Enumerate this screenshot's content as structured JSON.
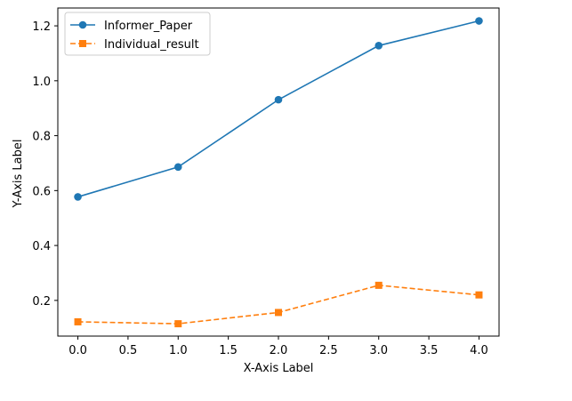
{
  "chart_data": {
    "type": "line",
    "title": "",
    "xlabel": "X-Axis Label",
    "ylabel": "Y-Axis Label",
    "x": [
      0.0,
      1.0,
      2.0,
      3.0,
      4.0
    ],
    "xlim": [
      -0.2,
      4.2
    ],
    "ylim": [
      0.07,
      1.265
    ],
    "xticks": [
      "0.0",
      "0.5",
      "1.0",
      "1.5",
      "2.0",
      "2.5",
      "3.0",
      "3.5",
      "4.0"
    ],
    "yticks": [
      "0.2",
      "0.4",
      "0.6",
      "0.8",
      "1.0",
      "1.2"
    ],
    "grid": false,
    "legend_position": "top-left",
    "series": [
      {
        "name": "Informer_Paper",
        "values": [
          0.577,
          0.686,
          0.931,
          1.128,
          1.218
        ],
        "color": "#1f77b4",
        "line_style": "solid",
        "marker": "circle"
      },
      {
        "name": "Individual_result",
        "values": [
          0.122,
          0.115,
          0.156,
          0.255,
          0.22
        ],
        "color": "#ff7f0e",
        "line_style": "dashed",
        "marker": "square"
      }
    ]
  }
}
